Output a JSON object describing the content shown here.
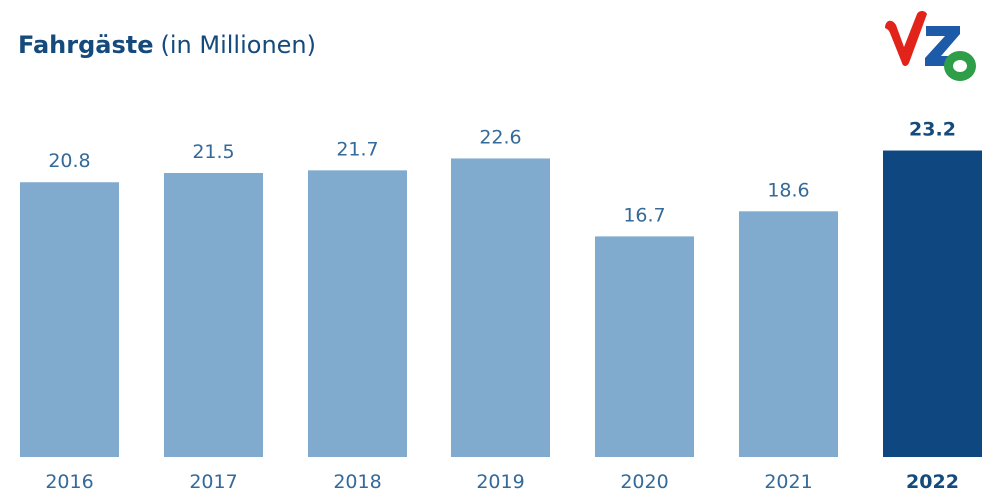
{
  "header": {
    "title_main": "Fahrgäste",
    "title_unit": "(in Millionen)"
  },
  "logo": {
    "letters": "VZO",
    "colors": {
      "v": "#e2231a",
      "z": "#1d5aa8",
      "o": "#2e9e48"
    }
  },
  "colors": {
    "bar": "#80abcf",
    "highlight_bar": "#0f4780",
    "label": "#346a99",
    "highlight_label": "#154a7c"
  },
  "chart_data": {
    "type": "bar",
    "title": "Fahrgäste (in Millionen)",
    "categories": [
      "2016",
      "2017",
      "2018",
      "2019",
      "2020",
      "2021",
      "2022"
    ],
    "values": [
      20.8,
      21.5,
      21.7,
      22.6,
      16.7,
      18.6,
      23.2
    ],
    "value_labels": [
      "20.8",
      "21.5",
      "21.7",
      "22.6",
      "16.7",
      "18.6",
      "23.2"
    ],
    "highlight_category": "2022",
    "ylim": [
      0,
      25
    ],
    "grid": false
  }
}
